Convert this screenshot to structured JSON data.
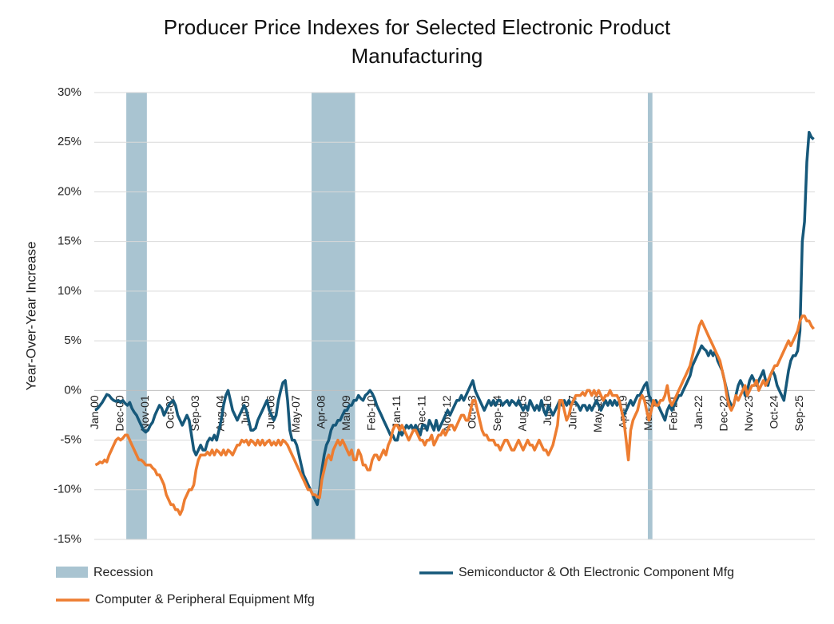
{
  "chart_data": {
    "type": "line",
    "title": "Producer Price Indexes for Selected Electronic Product Manufacturing",
    "y_label": "Year-Over-Year Increase",
    "categories": [
      "Jan-00",
      null,
      null,
      null,
      null,
      null,
      null,
      null,
      null,
      null,
      null,
      "Dec-00",
      null,
      null,
      null,
      null,
      null,
      null,
      null,
      null,
      null,
      null,
      "Nov-01",
      null,
      null,
      null,
      null,
      null,
      null,
      null,
      null,
      null,
      null,
      "Oct-02",
      null,
      null,
      null,
      null,
      null,
      null,
      null,
      null,
      null,
      null,
      "Sep-03",
      null,
      null,
      null,
      null,
      null,
      null,
      null,
      null,
      null,
      null,
      "Aug-04",
      null,
      null,
      null,
      null,
      null,
      null,
      null,
      null,
      null,
      null,
      "Jul-05",
      null,
      null,
      null,
      null,
      null,
      null,
      null,
      null,
      null,
      null,
      "Jun-06",
      null,
      null,
      null,
      null,
      null,
      null,
      null,
      null,
      null,
      null,
      "May-07",
      null,
      null,
      null,
      null,
      null,
      null,
      null,
      null,
      null,
      null,
      "Apr-08",
      null,
      null,
      null,
      null,
      null,
      null,
      null,
      null,
      null,
      null,
      "Mar-09",
      null,
      null,
      null,
      null,
      null,
      null,
      null,
      null,
      null,
      null,
      "Feb-10",
      null,
      null,
      null,
      null,
      null,
      null,
      null,
      null,
      null,
      null,
      "Jan-11",
      null,
      null,
      null,
      null,
      null,
      null,
      null,
      null,
      null,
      null,
      "Dec-11",
      null,
      null,
      null,
      null,
      null,
      null,
      null,
      null,
      null,
      null,
      "Nov-12",
      null,
      null,
      null,
      null,
      null,
      null,
      null,
      null,
      null,
      null,
      "Oct-13",
      null,
      null,
      null,
      null,
      null,
      null,
      null,
      null,
      null,
      null,
      "Sep-14",
      null,
      null,
      null,
      null,
      null,
      null,
      null,
      null,
      null,
      null,
      "Aug-15",
      null,
      null,
      null,
      null,
      null,
      null,
      null,
      null,
      null,
      null,
      "Jul-16",
      null,
      null,
      null,
      null,
      null,
      null,
      null,
      null,
      null,
      null,
      "Jun-17",
      null,
      null,
      null,
      null,
      null,
      null,
      null,
      null,
      null,
      null,
      "May-18",
      null,
      null,
      null,
      null,
      null,
      null,
      null,
      null,
      null,
      null,
      "Apr-19",
      null,
      null,
      null,
      null,
      null,
      null,
      null,
      null,
      null,
      null,
      "Mar-20",
      null,
      null,
      null,
      null,
      null,
      null,
      null,
      null,
      null,
      null,
      "Feb-21",
      null,
      null,
      null,
      null,
      null,
      null,
      null,
      null,
      null,
      null,
      "Jan-22",
      null,
      null,
      null,
      null,
      null,
      null,
      null,
      null,
      null,
      null,
      "Dec-22",
      null,
      null,
      null,
      null,
      null,
      null,
      null,
      null,
      null,
      null,
      "Nov-23",
      null,
      null,
      null,
      null,
      null,
      null,
      null,
      null,
      null,
      null,
      "Oct-24",
      null,
      null,
      null,
      null,
      null,
      null,
      null,
      null,
      null,
      null,
      "Sep-25",
      null,
      null,
      null,
      null,
      null,
      null
    ],
    "recession": {
      "name": "Recession",
      "color": "#a9c4d1",
      "spans": [
        [
          14,
          22
        ],
        [
          95,
          113
        ],
        [
          242,
          243
        ]
      ]
    },
    "series": [
      {
        "name": "Semiconductor & Oth Electronic Component Mfg",
        "color": "#16587a",
        "values": [
          -2.0,
          -1.8,
          -1.5,
          -1.2,
          -0.8,
          -0.4,
          -0.5,
          -0.8,
          -1.0,
          -1.1,
          -1.0,
          -1.2,
          -1.0,
          -1.3,
          -1.5,
          -1.2,
          -1.8,
          -2.2,
          -2.5,
          -3.0,
          -3.5,
          -4.0,
          -4.2,
          -4.0,
          -3.5,
          -3.2,
          -2.5,
          -2.0,
          -1.5,
          -1.8,
          -2.5,
          -2.0,
          -1.5,
          -1.2,
          -1.0,
          -1.5,
          -2.5,
          -3.0,
          -3.5,
          -3.0,
          -2.5,
          -3.0,
          -4.5,
          -6.0,
          -6.5,
          -6.0,
          -5.5,
          -6.0,
          -6.0,
          -5.2,
          -4.8,
          -5.0,
          -4.5,
          -5.0,
          -4.0,
          -3.0,
          -1.5,
          -0.5,
          0.0,
          -1.0,
          -2.0,
          -2.5,
          -3.0,
          -2.5,
          -2.0,
          -1.5,
          -2.0,
          -3.0,
          -4.0,
          -4.0,
          -3.8,
          -3.0,
          -2.5,
          -2.0,
          -1.5,
          -1.0,
          -2.0,
          -2.5,
          -3.0,
          -2.5,
          -1.0,
          0.0,
          0.8,
          1.0,
          -1.0,
          -4.0,
          -5.0,
          -5.0,
          -5.5,
          -6.5,
          -7.5,
          -8.5,
          -9.0,
          -9.5,
          -10.0,
          -10.5,
          -11.0,
          -11.5,
          -10.0,
          -8.0,
          -6.5,
          -5.5,
          -5.0,
          -4.0,
          -3.5,
          -3.5,
          -3.0,
          -3.0,
          -2.5,
          -2.0,
          -2.0,
          -1.5,
          -1.5,
          -1.0,
          -1.0,
          -0.5,
          -0.8,
          -1.0,
          -0.5,
          -0.3,
          0.0,
          -0.3,
          -0.8,
          -1.5,
          -2.0,
          -2.5,
          -3.0,
          -3.5,
          -4.0,
          -4.5,
          -4.5,
          -5.0,
          -5.0,
          -4.0,
          -4.5,
          -4.0,
          -3.5,
          -3.8,
          -3.5,
          -4.0,
          -3.5,
          -4.0,
          -4.5,
          -3.5,
          -3.5,
          -4.0,
          -3.0,
          -3.5,
          -4.0,
          -3.0,
          -4.0,
          -3.5,
          -3.0,
          -2.5,
          -2.0,
          -2.5,
          -2.0,
          -1.5,
          -1.0,
          -1.0,
          -0.5,
          -1.0,
          -0.5,
          0.0,
          0.5,
          1.0,
          0.0,
          -0.5,
          -1.0,
          -1.5,
          -2.0,
          -1.5,
          -1.0,
          -1.5,
          -1.0,
          -1.5,
          -1.0,
          -1.0,
          -1.5,
          -1.2,
          -1.0,
          -1.5,
          -1.0,
          -1.2,
          -1.5,
          -1.0,
          -1.5,
          -2.0,
          -1.5,
          -2.0,
          -1.0,
          -1.5,
          -2.0,
          -1.5,
          -2.0,
          -1.0,
          -2.0,
          -2.5,
          -1.5,
          -2.0,
          -2.5,
          -2.0,
          -1.5,
          -1.0,
          -1.5,
          -1.0,
          -1.5,
          -1.0,
          -1.5,
          -1.0,
          -1.2,
          -1.5,
          -2.0,
          -1.5,
          -1.5,
          -2.0,
          -1.5,
          -2.0,
          -1.5,
          -1.0,
          -1.5,
          -2.0,
          -1.5,
          -1.0,
          -1.5,
          -1.0,
          -1.5,
          -1.0,
          -1.5,
          -1.0,
          -2.0,
          -2.5,
          -2.0,
          -1.5,
          -1.0,
          -1.5,
          -1.0,
          -0.5,
          -0.5,
          0.0,
          0.5,
          0.8,
          -0.5,
          -1.0,
          -1.5,
          -1.0,
          -1.5,
          -2.0,
          -2.5,
          -3.0,
          -2.0,
          -1.5,
          -2.0,
          -1.5,
          -1.0,
          -0.5,
          -0.5,
          0.0,
          0.5,
          1.0,
          1.5,
          2.5,
          3.0,
          3.5,
          4.0,
          4.5,
          4.2,
          4.0,
          3.5,
          4.0,
          3.5,
          4.0,
          3.0,
          2.5,
          2.0,
          1.0,
          0.0,
          -1.0,
          -1.5,
          -1.5,
          -0.5,
          0.5,
          1.0,
          0.5,
          -0.5,
          0.0,
          1.0,
          1.5,
          1.0,
          0.5,
          1.0,
          1.5,
          2.0,
          1.0,
          0.5,
          1.5,
          2.0,
          1.5,
          0.5,
          0.0,
          -0.5,
          -1.0,
          0.5,
          2.0,
          3.0,
          3.5,
          3.5,
          4.0,
          6.0,
          15.0,
          17.0,
          23.0,
          26.0,
          25.5,
          25.3
        ]
      },
      {
        "name": "Computer & Peripheral Equipment Mfg",
        "color": "#ed7d31",
        "values": [
          -7.5,
          -7.4,
          -7.2,
          -7.3,
          -7.0,
          -7.2,
          -6.5,
          -6.0,
          -5.5,
          -5.0,
          -4.8,
          -5.0,
          -4.8,
          -4.5,
          -4.5,
          -5.0,
          -5.5,
          -6.0,
          -6.5,
          -7.0,
          -7.0,
          -7.2,
          -7.5,
          -7.5,
          -7.5,
          -7.8,
          -8.0,
          -8.5,
          -8.5,
          -9.0,
          -9.5,
          -10.5,
          -11.0,
          -11.5,
          -11.5,
          -12.0,
          -12.0,
          -12.5,
          -12.0,
          -11.0,
          -10.5,
          -10.0,
          -10.0,
          -9.5,
          -8.0,
          -7.0,
          -6.5,
          -6.5,
          -6.5,
          -6.2,
          -6.5,
          -6.0,
          -6.5,
          -6.0,
          -6.2,
          -6.5,
          -6.0,
          -6.5,
          -6.0,
          -6.2,
          -6.5,
          -6.0,
          -5.5,
          -5.5,
          -5.0,
          -5.2,
          -5.0,
          -5.5,
          -5.0,
          -5.2,
          -5.5,
          -5.0,
          -5.5,
          -5.0,
          -5.5,
          -5.2,
          -5.0,
          -5.5,
          -5.2,
          -5.5,
          -5.0,
          -5.5,
          -5.0,
          -5.2,
          -5.5,
          -6.0,
          -6.5,
          -7.0,
          -7.5,
          -8.0,
          -8.5,
          -9.0,
          -9.5,
          -10.0,
          -10.0,
          -10.5,
          -10.5,
          -10.7,
          -10.8,
          -9.0,
          -8.0,
          -7.0,
          -6.5,
          -7.0,
          -6.0,
          -5.5,
          -5.0,
          -5.5,
          -5.0,
          -5.5,
          -6.0,
          -6.5,
          -6.0,
          -7.0,
          -7.0,
          -6.0,
          -6.5,
          -7.5,
          -7.5,
          -8.0,
          -8.0,
          -7.0,
          -6.5,
          -6.5,
          -7.0,
          -6.5,
          -6.0,
          -6.5,
          -5.5,
          -5.0,
          -4.0,
          -3.5,
          -3.5,
          -4.0,
          -3.5,
          -4.0,
          -4.5,
          -5.0,
          -4.5,
          -4.0,
          -4.0,
          -4.5,
          -5.0,
          -5.0,
          -5.5,
          -5.0,
          -5.0,
          -4.5,
          -5.5,
          -5.0,
          -4.5,
          -4.5,
          -4.0,
          -4.5,
          -4.0,
          -3.5,
          -3.5,
          -4.0,
          -3.5,
          -3.0,
          -2.5,
          -2.5,
          -3.0,
          -3.0,
          -2.0,
          -1.0,
          -1.0,
          -2.0,
          -3.0,
          -4.0,
          -4.5,
          -4.5,
          -5.0,
          -5.0,
          -5.0,
          -5.5,
          -5.5,
          -6.0,
          -5.5,
          -5.0,
          -5.0,
          -5.5,
          -6.0,
          -6.0,
          -5.5,
          -5.0,
          -5.5,
          -6.0,
          -5.5,
          -5.0,
          -5.5,
          -5.5,
          -6.0,
          -5.5,
          -5.0,
          -5.5,
          -6.0,
          -6.0,
          -6.5,
          -6.0,
          -5.5,
          -4.5,
          -3.5,
          -1.0,
          -1.0,
          -2.0,
          -3.0,
          -2.5,
          -1.5,
          -1.0,
          -0.5,
          -0.5,
          -0.5,
          -0.2,
          -0.5,
          0.0,
          0.0,
          -0.5,
          0.0,
          -0.5,
          0.0,
          -0.5,
          -1.0,
          -0.5,
          -0.5,
          0.0,
          -0.5,
          -0.5,
          -0.5,
          -1.0,
          -2.0,
          -3.0,
          -5.0,
          -7.0,
          -4.0,
          -3.0,
          -2.5,
          -2.0,
          -1.0,
          -0.5,
          -1.0,
          -2.0,
          -3.0,
          -2.0,
          -1.0,
          -1.5,
          -1.5,
          -1.0,
          -1.0,
          -0.5,
          0.5,
          -1.0,
          -1.5,
          -1.0,
          -0.5,
          0.0,
          0.5,
          1.0,
          1.5,
          2.0,
          2.5,
          3.5,
          4.5,
          5.5,
          6.5,
          7.0,
          6.5,
          6.0,
          5.5,
          5.0,
          4.5,
          4.0,
          3.5,
          3.0,
          2.0,
          1.0,
          -0.5,
          -1.5,
          -2.0,
          -1.5,
          -0.5,
          -1.0,
          -0.5,
          0.0,
          0.5,
          -0.5,
          0.0,
          0.5,
          0.5,
          1.0,
          0.0,
          0.5,
          1.0,
          0.5,
          1.0,
          1.5,
          2.0,
          2.5,
          2.5,
          3.0,
          3.5,
          4.0,
          4.5,
          5.0,
          4.5,
          5.0,
          5.5,
          6.0,
          7.0,
          7.5,
          7.5,
          7.0,
          7.0,
          6.5,
          6.2
        ]
      }
    ],
    "ylim": [
      -15,
      30
    ],
    "yticks": [
      {
        "value": -15,
        "label": "-15%"
      },
      {
        "value": -10,
        "label": "-10%"
      },
      {
        "value": -5,
        "label": "-5%"
      },
      {
        "value": 0,
        "label": "0%"
      },
      {
        "value": 5,
        "label": "5%"
      },
      {
        "value": 10,
        "label": "10%"
      },
      {
        "value": 15,
        "label": "15%"
      },
      {
        "value": 20,
        "label": "20%"
      },
      {
        "value": 25,
        "label": "25%"
      },
      {
        "value": 30,
        "label": "30%"
      }
    ],
    "grid": true
  }
}
